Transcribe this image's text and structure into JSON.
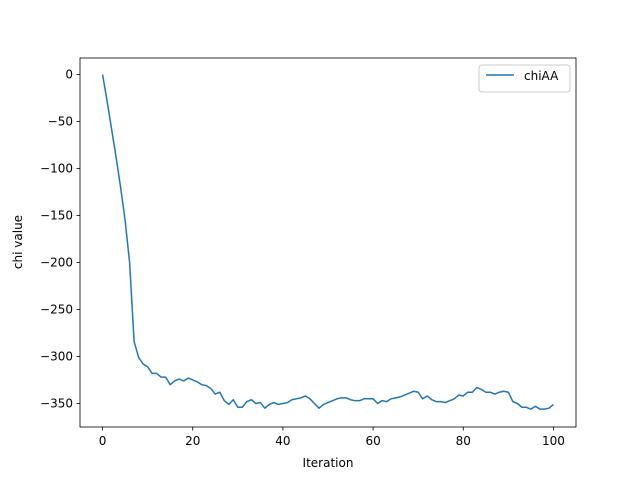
{
  "chart_data": {
    "type": "line",
    "title": "",
    "xlabel": "Iteration",
    "ylabel": "chi value",
    "xlim": [
      -5,
      105
    ],
    "ylim": [
      -375,
      17.5
    ],
    "xticks": [
      0,
      20,
      40,
      60,
      80,
      100
    ],
    "yticks": [
      0,
      -50,
      -100,
      -150,
      -200,
      -250,
      -300,
      -350
    ],
    "xtick_labels": [
      "0",
      "20",
      "40",
      "60",
      "80",
      "100"
    ],
    "ytick_labels": [
      "0",
      "−50",
      "−100",
      "−150",
      "−200",
      "−250",
      "−300",
      "−350"
    ],
    "grid": false,
    "legend": "upper-right",
    "series": [
      {
        "name": "chiAA",
        "color": "#1f77b4",
        "x": [
          0,
          1,
          2,
          3,
          4,
          5,
          6,
          7,
          8,
          9,
          10,
          11,
          12,
          13,
          14,
          15,
          16,
          17,
          18,
          19,
          20,
          21,
          22,
          23,
          24,
          25,
          26,
          27,
          28,
          29,
          30,
          31,
          32,
          33,
          34,
          35,
          36,
          37,
          38,
          39,
          40,
          41,
          42,
          43,
          44,
          45,
          46,
          47,
          48,
          49,
          50,
          51,
          52,
          53,
          54,
          55,
          56,
          57,
          58,
          59,
          60,
          61,
          62,
          63,
          64,
          65,
          66,
          67,
          68,
          69,
          70,
          71,
          72,
          73,
          74,
          75,
          76,
          77,
          78,
          79,
          80,
          81,
          82,
          83,
          84,
          85,
          86,
          87,
          88,
          89,
          90,
          91,
          92,
          93,
          94,
          95,
          96,
          97,
          98,
          99,
          100
        ],
        "values": [
          0,
          -28,
          -58,
          -88,
          -120,
          -155,
          -200,
          -284,
          -301,
          -308,
          -311,
          -318,
          -318,
          -322,
          -322,
          -330,
          -326,
          -324,
          -326,
          -323,
          -325,
          -327,
          -330,
          -331,
          -334,
          -340,
          -338,
          -347,
          -351,
          -346,
          -354,
          -354,
          -348,
          -346,
          -350,
          -349,
          -355,
          -351,
          -349,
          -351,
          -350,
          -349,
          -346,
          -345,
          -344,
          -342,
          -345,
          -350,
          -355,
          -351,
          -349,
          -347,
          -345,
          -344,
          -344,
          -346,
          -347,
          -347,
          -345,
          -345,
          -345,
          -350,
          -347,
          -348,
          -345,
          -344,
          -343,
          -341,
          -339,
          -337,
          -338,
          -345,
          -342,
          -346,
          -348,
          -348,
          -349,
          -347,
          -345,
          -341,
          -342,
          -338,
          -338,
          -333,
          -335,
          -338,
          -338,
          -340,
          -338,
          -337,
          -338,
          -348,
          -350,
          -354,
          -354,
          -356,
          -353,
          -356,
          -356,
          -355,
          -351
        ]
      }
    ]
  }
}
